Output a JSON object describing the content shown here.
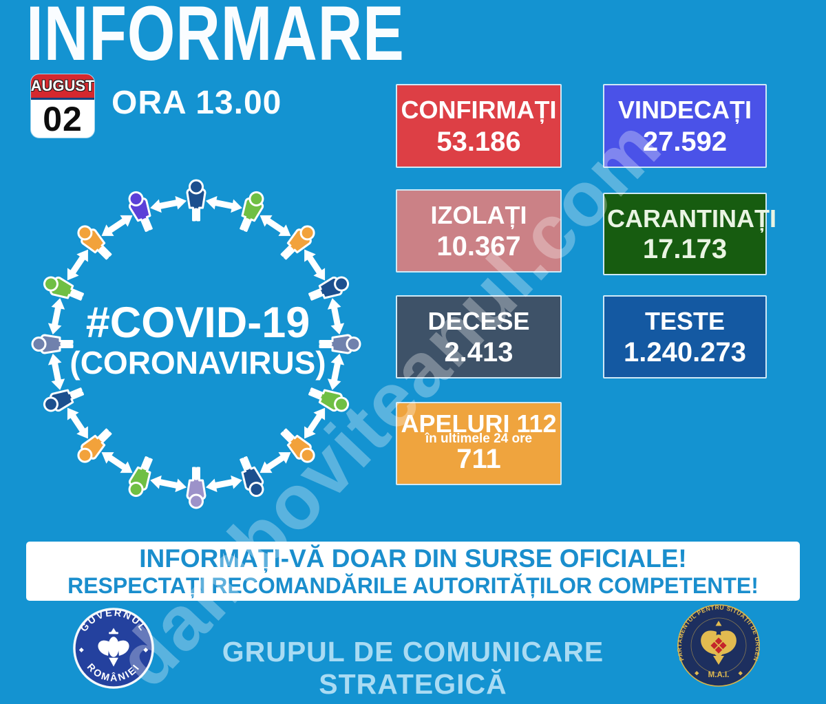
{
  "page": {
    "bg": "#1493d1"
  },
  "header": {
    "title": "INFORMARE",
    "calendar": {
      "month": "AUGUST",
      "day": "02"
    },
    "time_label": "ORA 13.00"
  },
  "circle_graphic": {
    "center_line1": "#COVID-19",
    "center_line2": "(CORONAVIRUS)",
    "figure_colors": [
      "#1c4f8e",
      "#6fbf44",
      "#f2a23b",
      "#1c4f8e",
      "#7081ad",
      "#6fbf44",
      "#f2a23b",
      "#1c4f8e",
      "#9c92c9",
      "#6fbf44",
      "#f2a23b",
      "#1c4f8e",
      "#7081ad",
      "#6fbf44",
      "#f2a23b",
      "#5b40d8"
    ],
    "arrow_color": "#ffffff"
  },
  "stats": [
    {
      "id": "confirmati",
      "label": "CONFIRMAȚI",
      "value": "53.186",
      "bg": "#dd3f45",
      "text_color": "#ffffff"
    },
    {
      "id": "vindecati",
      "label": "VINDECAȚI",
      "value": "27.592",
      "bg": "#4a52e8",
      "text_color": "#ffffff"
    },
    {
      "id": "izolati",
      "label": "IZOLAȚI",
      "value": "10.367",
      "bg": "#cb8186",
      "text_color": "#ffffff"
    },
    {
      "id": "carantinati",
      "label": "CARANTINAȚI",
      "value": "17.173",
      "bg": "#175c10",
      "text_color": "#eaf4e3"
    },
    {
      "id": "decese",
      "label": "DECESE",
      "value": "2.413",
      "bg": "#3e5268",
      "text_color": "#ffffff"
    },
    {
      "id": "teste",
      "label": "TESTE",
      "value": "1.240.273",
      "bg": "#1459a2",
      "text_color": "#ffffff"
    },
    {
      "id": "apeluri",
      "label": "APELURI 112",
      "sublabel": "în ultimele 24 ore",
      "value": "711",
      "bg": "#efa43e",
      "text_color": "#ffffff"
    }
  ],
  "banner": {
    "line1": "INFORMAȚI-VĂ DOAR DIN SURSE OFICIALE!",
    "line2": "RESPECTAȚI RECOMANDĂRILE AUTORITĂȚILOR COMPETENTE!",
    "text_color": "#1a8ecd"
  },
  "footer": {
    "gov_logo": {
      "top_text": "GUVERNUL",
      "bottom_text": "ROMÂNIEI"
    },
    "center_text": "GRUPUL DE COMUNICARE STRATEGICĂ",
    "dsu_logo": {
      "ring_text": "DEPARTAMENTUL PENTRU SITUAȚII DE URGENȚĂ",
      "bottom_text": "M.A.I."
    }
  },
  "watermark": {
    "text": "damboviteanul.com"
  }
}
